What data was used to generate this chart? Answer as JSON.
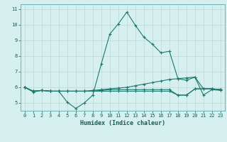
{
  "title": "",
  "xlabel": "Humidex (Indice chaleur)",
  "bg_color": "#d6f0f0",
  "grid_color": "#b8dada",
  "line_color": "#1a7a6e",
  "xlim": [
    -0.5,
    23.5
  ],
  "ylim": [
    4.5,
    11.3
  ],
  "yticks": [
    5,
    6,
    7,
    8,
    9,
    10,
    11
  ],
  "xticks": [
    0,
    1,
    2,
    3,
    4,
    5,
    6,
    7,
    8,
    9,
    10,
    11,
    12,
    13,
    14,
    15,
    16,
    17,
    18,
    19,
    20,
    21,
    22,
    23
  ],
  "series": [
    {
      "x": [
        0,
        1,
        2,
        3,
        4,
        5,
        6,
        7,
        8,
        9,
        10,
        11,
        12,
        13,
        14,
        15,
        16,
        17,
        18,
        19,
        20,
        21,
        22,
        23
      ],
      "y": [
        6.0,
        5.7,
        5.8,
        5.75,
        5.75,
        5.05,
        4.65,
        5.0,
        5.5,
        7.5,
        9.4,
        10.05,
        10.8,
        9.95,
        9.2,
        8.75,
        8.2,
        8.3,
        6.55,
        6.45,
        6.65,
        5.5,
        5.85,
        5.8
      ]
    },
    {
      "x": [
        0,
        1,
        2,
        3,
        4,
        5,
        6,
        7,
        8,
        9,
        10,
        11,
        12,
        13,
        14,
        15,
        16,
        17,
        18,
        19,
        20,
        21,
        22,
        23
      ],
      "y": [
        6.0,
        5.75,
        5.8,
        5.75,
        5.75,
        5.75,
        5.75,
        5.75,
        5.8,
        5.85,
        5.9,
        5.95,
        6.0,
        6.1,
        6.2,
        6.3,
        6.4,
        6.5,
        6.55,
        6.6,
        6.65,
        5.9,
        5.9,
        5.85
      ]
    },
    {
      "x": [
        0,
        1,
        2,
        3,
        4,
        5,
        6,
        7,
        8,
        9,
        10,
        11,
        12,
        13,
        14,
        15,
        16,
        17,
        18,
        19,
        20,
        21,
        22,
        23
      ],
      "y": [
        6.0,
        5.75,
        5.8,
        5.75,
        5.75,
        5.75,
        5.75,
        5.75,
        5.75,
        5.75,
        5.75,
        5.75,
        5.75,
        5.75,
        5.75,
        5.75,
        5.75,
        5.75,
        5.5,
        5.5,
        5.9,
        5.9,
        5.9,
        5.85
      ]
    },
    {
      "x": [
        0,
        1,
        2,
        3,
        4,
        5,
        6,
        7,
        8,
        9,
        10,
        11,
        12,
        13,
        14,
        15,
        16,
        17,
        18,
        19,
        20,
        21,
        22,
        23
      ],
      "y": [
        6.0,
        5.75,
        5.8,
        5.75,
        5.75,
        5.75,
        5.75,
        5.75,
        5.75,
        5.8,
        5.85,
        5.85,
        5.85,
        5.85,
        5.85,
        5.85,
        5.85,
        5.85,
        5.5,
        5.5,
        5.9,
        5.9,
        5.9,
        5.85
      ]
    }
  ]
}
